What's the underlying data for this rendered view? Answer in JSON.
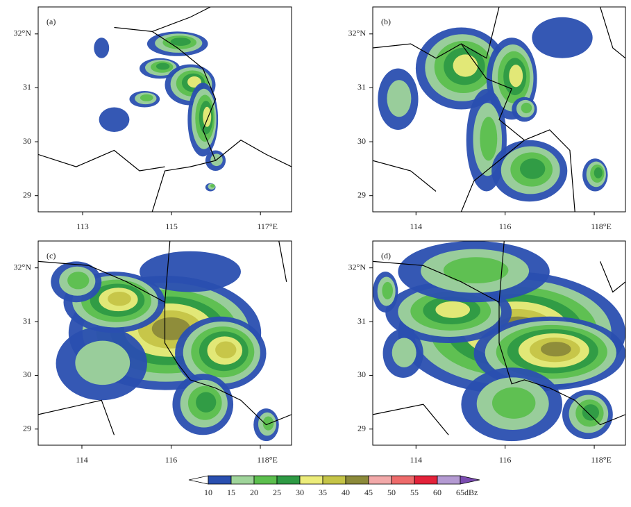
{
  "panels": [
    {
      "label": "(a)",
      "xlim": [
        112,
        117.7
      ],
      "ylim": [
        28.7,
        32.5
      ],
      "xticks": [
        113,
        115,
        {
          "value": 117,
          "label": "117°E"
        }
      ],
      "yticks": [
        29,
        30,
        31,
        {
          "value": 32,
          "label": "32°N"
        }
      ]
    },
    {
      "label": "(b)",
      "xlim": [
        113.03,
        118.7
      ],
      "ylim": [
        28.7,
        32.5
      ],
      "xticks": [
        114,
        116,
        {
          "value": 118,
          "label": "118°E"
        }
      ],
      "yticks": [
        29,
        30,
        31,
        {
          "value": 32,
          "label": "32°N"
        }
      ]
    },
    {
      "label": "(c)",
      "xlim": [
        113.02,
        118.7
      ],
      "ylim": [
        28.7,
        32.5
      ],
      "xticks": [
        114,
        116,
        {
          "value": 118,
          "label": "118°E"
        }
      ],
      "yticks": [
        29,
        30,
        31,
        {
          "value": 32,
          "label": "32°N"
        }
      ]
    },
    {
      "label": "(d)",
      "xlim": [
        113.03,
        118.7
      ],
      "ylim": [
        28.7,
        32.5
      ],
      "xticks": [
        114,
        116,
        {
          "value": 118,
          "label": "118°E"
        }
      ],
      "yticks": [
        29,
        30,
        31,
        {
          "value": 32,
          "label": "32°N"
        }
      ]
    }
  ],
  "colorbar": {
    "levels": [
      10,
      15,
      20,
      25,
      30,
      35,
      40,
      45,
      50,
      55,
      60,
      65
    ],
    "colors": [
      "#2a4fb0",
      "#9fd49a",
      "#5cbf4e",
      "#2e9a44",
      "#ecec7a",
      "#c5c447",
      "#8c8a3a",
      "#f2a9a9",
      "#ee6b6b",
      "#e3223a",
      "#b49ad2"
    ],
    "under_color": "#ffffff",
    "over_color": "#7a4bb0",
    "unit": "dBz"
  }
}
